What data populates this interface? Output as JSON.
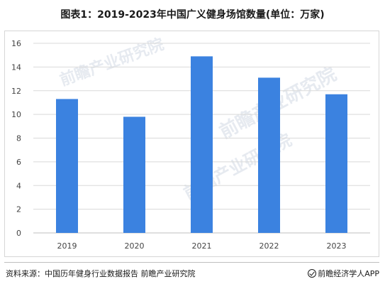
{
  "title": "图表1：2019-2023年中国广义健身场馆数量(单位：万家)",
  "footer": {
    "source": "资料来源：中国历年健身行业数据报告 前瞻产业研究院",
    "brand": "前瞻经济学人APP"
  },
  "watermark": {
    "text": "前瞻产业研究院"
  },
  "colors": {
    "bar": "#3b82e0",
    "grid": "#d9d9d9",
    "axis": "#bfbfbf"
  },
  "chart_data": {
    "type": "bar",
    "categories": [
      "2019",
      "2020",
      "2021",
      "2022",
      "2023"
    ],
    "values": [
      11.3,
      9.8,
      14.9,
      13.1,
      11.7
    ],
    "title": "图表1：2019-2023年中国广义健身场馆数量(单位：万家)",
    "xlabel": "",
    "ylabel": "",
    "ylim": [
      0,
      16
    ],
    "yticks": [
      0,
      2,
      4,
      6,
      8,
      10,
      12,
      14,
      16
    ],
    "grid": true,
    "legend": "none"
  }
}
